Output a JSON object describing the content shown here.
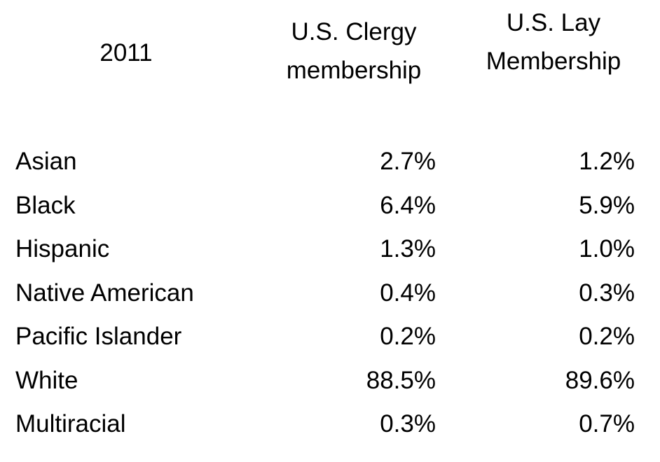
{
  "table": {
    "header": [
      [
        "2011"
      ],
      [
        "U.S. Clergy",
        "membership"
      ],
      [
        "U.S. Lay",
        "Membership"
      ]
    ],
    "rows": [
      [
        "Asian",
        "2.7%",
        "1.2%"
      ],
      [
        "Black",
        "6.4%",
        "5.9%"
      ],
      [
        "Hispanic",
        "1.3%",
        "1.0%"
      ],
      [
        "Native American",
        "0.4%",
        "0.3%"
      ],
      [
        "Pacific Islander",
        "0.2%",
        "0.2%"
      ],
      [
        "White",
        "88.5%",
        "89.6%"
      ],
      [
        "Multiracial",
        "0.3%",
        "0.7%"
      ]
    ]
  }
}
